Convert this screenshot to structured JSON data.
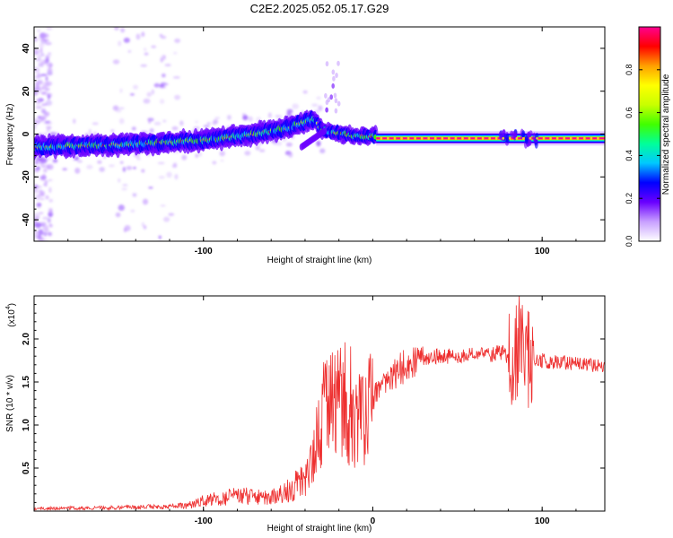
{
  "figure": {
    "title": "C2E2.2025.052.05.17.G29"
  },
  "colors": {
    "snr_line": "#ee3030",
    "spectrogram_background": "#ffffff",
    "axis": "#000000"
  },
  "chart_data": [
    {
      "type": "heatmap",
      "xlabel": "Height of straight line (km)",
      "ylabel": "Frequency (Hz)",
      "xlim": [
        -200,
        137
      ],
      "ylim": [
        -50,
        50
      ],
      "xticks": [
        -100,
        100
      ],
      "yticks": [
        -40,
        -20,
        0,
        20,
        40
      ],
      "colorbar": {
        "label": "Normalized spectral amplitude",
        "range": [
          0,
          1
        ],
        "ticks": [
          0.0,
          0.2,
          0.4,
          0.6,
          0.8
        ],
        "colormap": [
          "#ffffff",
          "#c8a0ff",
          "#6a00ff",
          "#0000ff",
          "#00c8ff",
          "#00ff9a",
          "#40ff00",
          "#c8ff00",
          "#ffff00",
          "#ffa000",
          "#ff0000",
          "#ff0090"
        ]
      },
      "ridge": {
        "description_points": [
          {
            "x": -200,
            "y": -6
          },
          {
            "x": -150,
            "y": -5
          },
          {
            "x": -100,
            "y": -3
          },
          {
            "x": -70,
            "y": 0
          },
          {
            "x": -50,
            "y": 3
          },
          {
            "x": -35,
            "y": 7
          },
          {
            "x": -30,
            "y": 2
          },
          {
            "x": -10,
            "y": -1
          },
          {
            "x": 0,
            "y": -1
          },
          {
            "x": 30,
            "y": -2
          },
          {
            "x": 80,
            "y": -2
          },
          {
            "x": 137,
            "y": -2
          }
        ]
      }
    },
    {
      "type": "line",
      "xlabel": "Height of straight line (km)",
      "ylabel": "SNR (10 * v/v)",
      "multiplier_label": "(x10",
      "multiplier_exponent": "4",
      "xlim": [
        -200,
        137
      ],
      "ylim": [
        0,
        2.5
      ],
      "xticks": [
        -100,
        0,
        100
      ],
      "yticks": [
        0.5,
        1.0,
        1.5,
        2.0
      ],
      "series": [
        {
          "envelope_x": [
            -200,
            -150,
            -110,
            -100,
            -80,
            -60,
            -50,
            -40,
            -35,
            -30,
            -25,
            -20,
            -15,
            -10,
            -5,
            0,
            10,
            20,
            30,
            40,
            50,
            60,
            70,
            75,
            80,
            85,
            90,
            95,
            100,
            110,
            120,
            130,
            137
          ],
          "envelope_y": [
            0.03,
            0.04,
            0.06,
            0.12,
            0.18,
            0.15,
            0.25,
            0.35,
            0.6,
            1.1,
            1.2,
            1.3,
            1.1,
            1.0,
            1.1,
            1.3,
            1.55,
            1.7,
            1.78,
            1.8,
            1.8,
            1.82,
            1.82,
            1.85,
            1.8,
            1.9,
            1.8,
            1.75,
            1.75,
            1.72,
            1.72,
            1.7,
            1.69
          ]
        }
      ]
    }
  ]
}
